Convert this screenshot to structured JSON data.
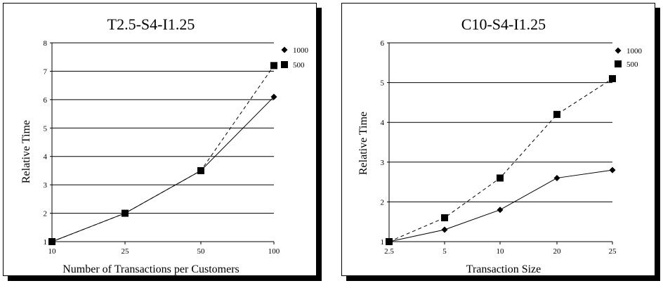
{
  "chart_data": [
    {
      "type": "line",
      "title": "T2.5-S4-I1.25",
      "xlabel": "Number of Transactions per Customers",
      "ylabel": "Relative Time",
      "categories": [
        "10",
        "25",
        "50",
        "100"
      ],
      "ylim": [
        1,
        8
      ],
      "yticks": [
        "1",
        "2",
        "3",
        "4",
        "5",
        "6",
        "7",
        "8"
      ],
      "grid": true,
      "legend": "top-right",
      "series": [
        {
          "name": "1000",
          "marker": "diamond",
          "line": "solid",
          "values": [
            1,
            2,
            3.5,
            6.1
          ]
        },
        {
          "name": "500",
          "marker": "square",
          "line": "dashed",
          "values": [
            1,
            2,
            3.5,
            7.2
          ]
        }
      ]
    },
    {
      "type": "line",
      "title": "C10-S4-I1.25",
      "xlabel": "Transaction Size",
      "ylabel": "Relative Time",
      "categories": [
        "2.5",
        "5",
        "10",
        "20",
        "25"
      ],
      "ylim": [
        1,
        6
      ],
      "yticks": [
        "1",
        "2",
        "3",
        "4",
        "5",
        "6"
      ],
      "grid": true,
      "legend": "top-right",
      "series": [
        {
          "name": "1000",
          "marker": "diamond",
          "line": "solid",
          "values": [
            1,
            1.3,
            1.8,
            2.6,
            2.8
          ]
        },
        {
          "name": "500",
          "marker": "square",
          "line": "dashed",
          "values": [
            1,
            1.6,
            2.6,
            4.2,
            5.1
          ]
        }
      ]
    }
  ]
}
